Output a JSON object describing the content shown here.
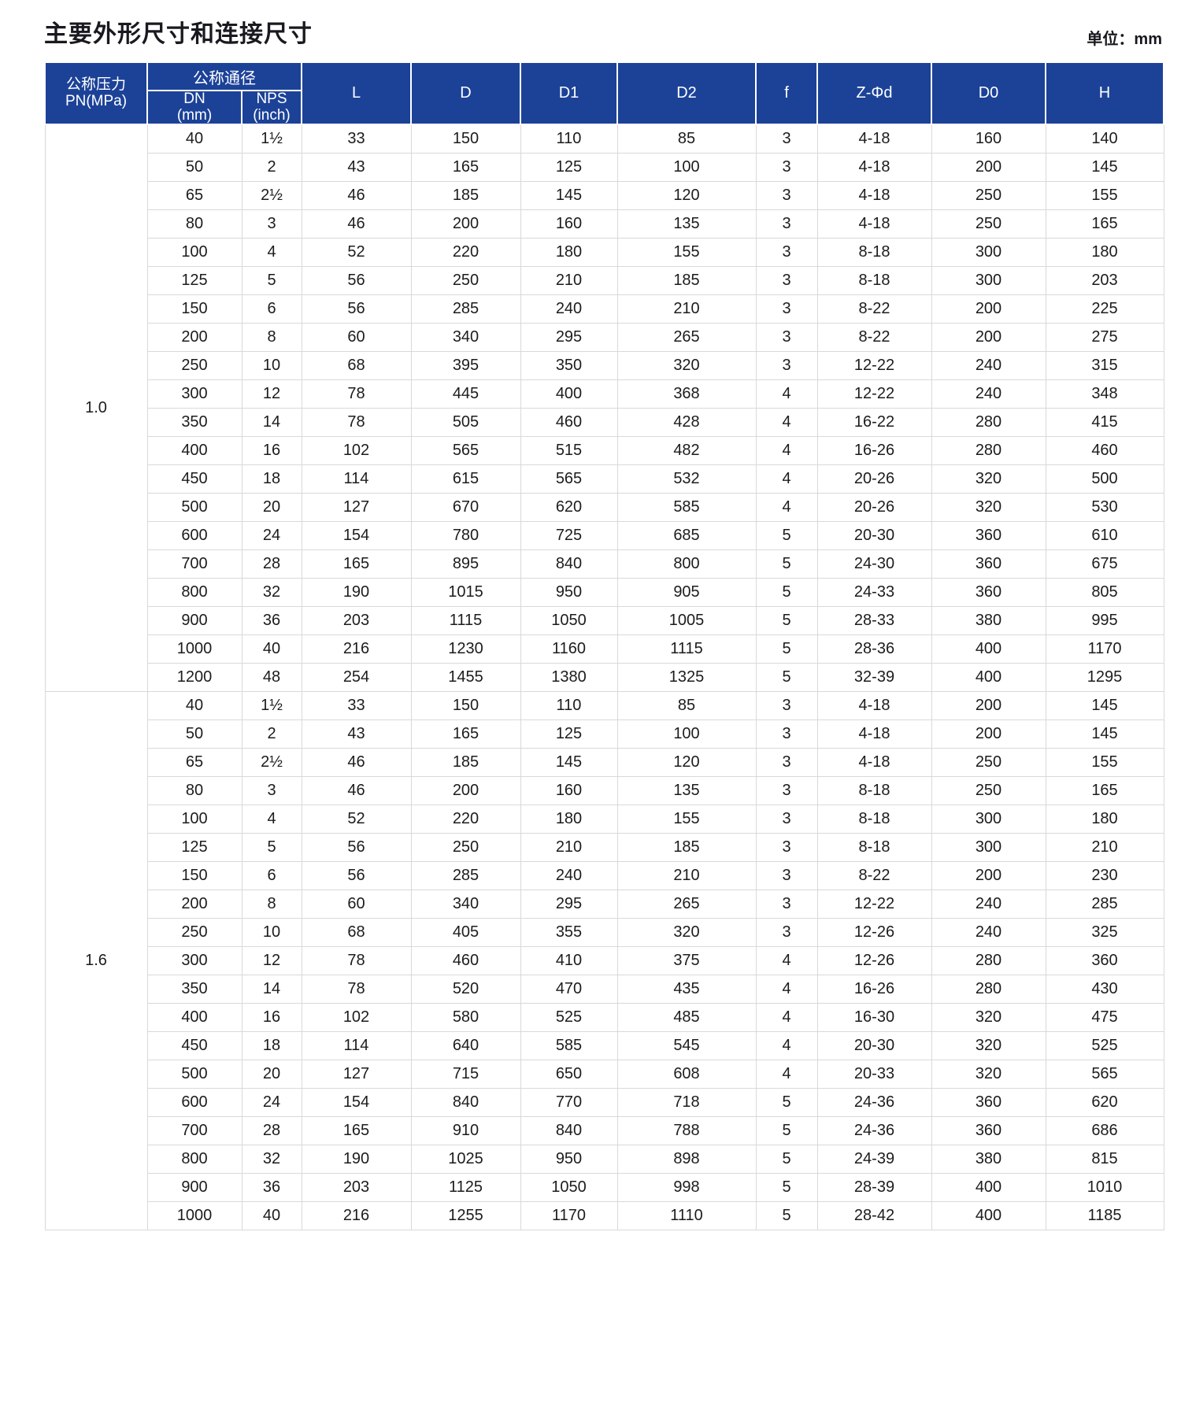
{
  "page": {
    "title": "主要外形尺寸和连接尺寸",
    "unit_label": "单位：mm"
  },
  "colors": {
    "header_bg": "#1c4298",
    "header_text": "#ffffff",
    "grid_line": "#d9d9d9",
    "text": "#1c1c1c"
  },
  "table": {
    "header": {
      "pressure_line1": "公称压力",
      "pressure_line2": "PN(MPa)",
      "diameter_group": "公称通径",
      "dn_line1": "DN",
      "dn_line2": "(mm)",
      "nps_line1": "NPS",
      "nps_line2": "(inch)",
      "dim_columns": [
        "L",
        "D",
        "D1",
        "D2",
        "f",
        "Z-Φd",
        "D0",
        "H"
      ]
    },
    "column_keys": [
      "dn",
      "nps",
      "l",
      "d",
      "d1",
      "d2",
      "f",
      "z-phid",
      "d0",
      "h"
    ],
    "sections": [
      {
        "pn": "1.0",
        "rows": [
          [
            "40",
            "1½",
            "33",
            "150",
            "110",
            "85",
            "3",
            "4-18",
            "160",
            "140"
          ],
          [
            "50",
            "2",
            "43",
            "165",
            "125",
            "100",
            "3",
            "4-18",
            "200",
            "145"
          ],
          [
            "65",
            "2½",
            "46",
            "185",
            "145",
            "120",
            "3",
            "4-18",
            "250",
            "155"
          ],
          [
            "80",
            "3",
            "46",
            "200",
            "160",
            "135",
            "3",
            "4-18",
            "250",
            "165"
          ],
          [
            "100",
            "4",
            "52",
            "220",
            "180",
            "155",
            "3",
            "8-18",
            "300",
            "180"
          ],
          [
            "125",
            "5",
            "56",
            "250",
            "210",
            "185",
            "3",
            "8-18",
            "300",
            "203"
          ],
          [
            "150",
            "6",
            "56",
            "285",
            "240",
            "210",
            "3",
            "8-22",
            "200",
            "225"
          ],
          [
            "200",
            "8",
            "60",
            "340",
            "295",
            "265",
            "3",
            "8-22",
            "200",
            "275"
          ],
          [
            "250",
            "10",
            "68",
            "395",
            "350",
            "320",
            "3",
            "12-22",
            "240",
            "315"
          ],
          [
            "300",
            "12",
            "78",
            "445",
            "400",
            "368",
            "4",
            "12-22",
            "240",
            "348"
          ],
          [
            "350",
            "14",
            "78",
            "505",
            "460",
            "428",
            "4",
            "16-22",
            "280",
            "415"
          ],
          [
            "400",
            "16",
            "102",
            "565",
            "515",
            "482",
            "4",
            "16-26",
            "280",
            "460"
          ],
          [
            "450",
            "18",
            "114",
            "615",
            "565",
            "532",
            "4",
            "20-26",
            "320",
            "500"
          ],
          [
            "500",
            "20",
            "127",
            "670",
            "620",
            "585",
            "4",
            "20-26",
            "320",
            "530"
          ],
          [
            "600",
            "24",
            "154",
            "780",
            "725",
            "685",
            "5",
            "20-30",
            "360",
            "610"
          ],
          [
            "700",
            "28",
            "165",
            "895",
            "840",
            "800",
            "5",
            "24-30",
            "360",
            "675"
          ],
          [
            "800",
            "32",
            "190",
            "1015",
            "950",
            "905",
            "5",
            "24-33",
            "360",
            "805"
          ],
          [
            "900",
            "36",
            "203",
            "1115",
            "1050",
            "1005",
            "5",
            "28-33",
            "380",
            "995"
          ],
          [
            "1000",
            "40",
            "216",
            "1230",
            "1160",
            "1115",
            "5",
            "28-36",
            "400",
            "1170"
          ],
          [
            "1200",
            "48",
            "254",
            "1455",
            "1380",
            "1325",
            "5",
            "32-39",
            "400",
            "1295"
          ]
        ]
      },
      {
        "pn": "1.6",
        "rows": [
          [
            "40",
            "1½",
            "33",
            "150",
            "110",
            "85",
            "3",
            "4-18",
            "200",
            "145"
          ],
          [
            "50",
            "2",
            "43",
            "165",
            "125",
            "100",
            "3",
            "4-18",
            "200",
            "145"
          ],
          [
            "65",
            "2½",
            "46",
            "185",
            "145",
            "120",
            "3",
            "4-18",
            "250",
            "155"
          ],
          [
            "80",
            "3",
            "46",
            "200",
            "160",
            "135",
            "3",
            "8-18",
            "250",
            "165"
          ],
          [
            "100",
            "4",
            "52",
            "220",
            "180",
            "155",
            "3",
            "8-18",
            "300",
            "180"
          ],
          [
            "125",
            "5",
            "56",
            "250",
            "210",
            "185",
            "3",
            "8-18",
            "300",
            "210"
          ],
          [
            "150",
            "6",
            "56",
            "285",
            "240",
            "210",
            "3",
            "8-22",
            "200",
            "230"
          ],
          [
            "200",
            "8",
            "60",
            "340",
            "295",
            "265",
            "3",
            "12-22",
            "240",
            "285"
          ],
          [
            "250",
            "10",
            "68",
            "405",
            "355",
            "320",
            "3",
            "12-26",
            "240",
            "325"
          ],
          [
            "300",
            "12",
            "78",
            "460",
            "410",
            "375",
            "4",
            "12-26",
            "280",
            "360"
          ],
          [
            "350",
            "14",
            "78",
            "520",
            "470",
            "435",
            "4",
            "16-26",
            "280",
            "430"
          ],
          [
            "400",
            "16",
            "102",
            "580",
            "525",
            "485",
            "4",
            "16-30",
            "320",
            "475"
          ],
          [
            "450",
            "18",
            "114",
            "640",
            "585",
            "545",
            "4",
            "20-30",
            "320",
            "525"
          ],
          [
            "500",
            "20",
            "127",
            "715",
            "650",
            "608",
            "4",
            "20-33",
            "320",
            "565"
          ],
          [
            "600",
            "24",
            "154",
            "840",
            "770",
            "718",
            "5",
            "24-36",
            "360",
            "620"
          ],
          [
            "700",
            "28",
            "165",
            "910",
            "840",
            "788",
            "5",
            "24-36",
            "360",
            "686"
          ],
          [
            "800",
            "32",
            "190",
            "1025",
            "950",
            "898",
            "5",
            "24-39",
            "380",
            "815"
          ],
          [
            "900",
            "36",
            "203",
            "1125",
            "1050",
            "998",
            "5",
            "28-39",
            "400",
            "1010"
          ],
          [
            "1000",
            "40",
            "216",
            "1255",
            "1170",
            "1110",
            "5",
            "28-42",
            "400",
            "1185"
          ]
        ]
      }
    ]
  }
}
